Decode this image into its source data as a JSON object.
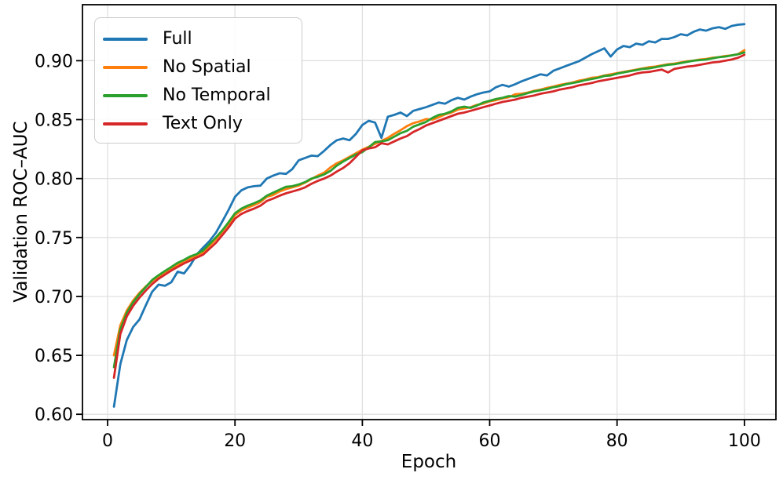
{
  "figure": {
    "xlabel": "Epoch",
    "ylabel": "Validation ROC–AUC"
  },
  "chart_data": {
    "type": "line",
    "title": "",
    "xlabel": "Epoch",
    "ylabel": "Validation ROC–AUC",
    "xlim": [
      -3.95,
      104.95
    ],
    "ylim": [
      0.5955,
      0.9475
    ],
    "xticks": [
      0,
      20,
      40,
      60,
      80,
      100
    ],
    "yticks": [
      0.6,
      0.65,
      0.7,
      0.75,
      0.8,
      0.85,
      0.9
    ],
    "grid": true,
    "grid_color": "#e0e0e0",
    "legend_position": "upper-left",
    "x": [
      1,
      2,
      3,
      4,
      5,
      6,
      7,
      8,
      9,
      10,
      11,
      12,
      13,
      14,
      15,
      16,
      17,
      18,
      19,
      20,
      21,
      22,
      23,
      24,
      25,
      26,
      27,
      28,
      29,
      30,
      31,
      32,
      33,
      34,
      35,
      36,
      37,
      38,
      39,
      40,
      41,
      42,
      43,
      44,
      45,
      46,
      47,
      48,
      49,
      50,
      51,
      52,
      53,
      54,
      55,
      56,
      57,
      58,
      59,
      60,
      61,
      62,
      63,
      64,
      65,
      66,
      67,
      68,
      69,
      70,
      71,
      72,
      73,
      74,
      75,
      76,
      77,
      78,
      79,
      80,
      81,
      82,
      83,
      84,
      85,
      86,
      87,
      88,
      89,
      90,
      91,
      92,
      93,
      94,
      95,
      96,
      97,
      98,
      99,
      100
    ],
    "series": [
      {
        "name": "Full",
        "color": "#1f77b4",
        "values": [
          0.6065,
          0.6425,
          0.663,
          0.674,
          0.6805,
          0.6925,
          0.704,
          0.71,
          0.709,
          0.712,
          0.721,
          0.7195,
          0.7265,
          0.7355,
          0.7415,
          0.747,
          0.754,
          0.7635,
          0.7735,
          0.7845,
          0.79,
          0.7925,
          0.7935,
          0.794,
          0.8,
          0.8025,
          0.8045,
          0.804,
          0.808,
          0.8155,
          0.8175,
          0.8195,
          0.819,
          0.8235,
          0.8285,
          0.8325,
          0.834,
          0.8325,
          0.838,
          0.8455,
          0.849,
          0.8475,
          0.8345,
          0.8525,
          0.854,
          0.856,
          0.853,
          0.8575,
          0.859,
          0.8605,
          0.8625,
          0.8645,
          0.8635,
          0.8665,
          0.8685,
          0.867,
          0.8695,
          0.8715,
          0.873,
          0.874,
          0.8775,
          0.8795,
          0.878,
          0.88,
          0.8825,
          0.8845,
          0.8865,
          0.8885,
          0.8875,
          0.8915,
          0.8935,
          0.8955,
          0.8975,
          0.8995,
          0.9025,
          0.9055,
          0.908,
          0.9105,
          0.9035,
          0.9095,
          0.9125,
          0.9115,
          0.9145,
          0.9135,
          0.9165,
          0.9155,
          0.9185,
          0.9185,
          0.92,
          0.9225,
          0.9215,
          0.9245,
          0.9265,
          0.9255,
          0.9275,
          0.9285,
          0.927,
          0.9295,
          0.9305,
          0.931
        ]
      },
      {
        "name": "No Spatial",
        "color": "#ff7f0e",
        "values": [
          0.65,
          0.6755,
          0.688,
          0.6965,
          0.703,
          0.7085,
          0.713,
          0.717,
          0.7205,
          0.724,
          0.727,
          0.73,
          0.7325,
          0.735,
          0.7375,
          0.743,
          0.7485,
          0.755,
          0.7615,
          0.769,
          0.773,
          0.7755,
          0.7775,
          0.78,
          0.7845,
          0.786,
          0.789,
          0.791,
          0.7925,
          0.794,
          0.7965,
          0.7995,
          0.8025,
          0.805,
          0.8095,
          0.813,
          0.8155,
          0.8185,
          0.8215,
          0.8245,
          0.827,
          0.8295,
          0.832,
          0.8345,
          0.838,
          0.841,
          0.8445,
          0.847,
          0.8485,
          0.8505,
          0.85,
          0.852,
          0.8545,
          0.856,
          0.8585,
          0.8595,
          0.8605,
          0.8625,
          0.8635,
          0.8655,
          0.8665,
          0.868,
          0.869,
          0.8715,
          0.872,
          0.873,
          0.8745,
          0.8755,
          0.877,
          0.878,
          0.8795,
          0.8805,
          0.8815,
          0.883,
          0.884,
          0.8855,
          0.886,
          0.8875,
          0.8885,
          0.8895,
          0.8905,
          0.8915,
          0.8925,
          0.8935,
          0.8945,
          0.895,
          0.896,
          0.897,
          0.8975,
          0.8985,
          0.8995,
          0.9,
          0.901,
          0.9015,
          0.9025,
          0.903,
          0.904,
          0.9045,
          0.9055,
          0.909
        ]
      },
      {
        "name": "No Temporal",
        "color": "#2ca02c",
        "values": [
          0.64,
          0.672,
          0.686,
          0.695,
          0.702,
          0.708,
          0.714,
          0.718,
          0.7215,
          0.725,
          0.7285,
          0.731,
          0.734,
          0.736,
          0.739,
          0.7445,
          0.75,
          0.756,
          0.763,
          0.7705,
          0.7745,
          0.777,
          0.779,
          0.7815,
          0.7855,
          0.788,
          0.7905,
          0.793,
          0.7935,
          0.795,
          0.797,
          0.8,
          0.8015,
          0.8035,
          0.8065,
          0.811,
          0.8145,
          0.8175,
          0.8205,
          0.8225,
          0.8265,
          0.831,
          0.8315,
          0.8325,
          0.8355,
          0.8385,
          0.8405,
          0.844,
          0.846,
          0.848,
          0.8515,
          0.854,
          0.855,
          0.857,
          0.86,
          0.861,
          0.86,
          0.862,
          0.8645,
          0.866,
          0.8675,
          0.8685,
          0.87,
          0.8695,
          0.871,
          0.8725,
          0.874,
          0.875,
          0.876,
          0.8775,
          0.8785,
          0.88,
          0.881,
          0.882,
          0.8835,
          0.8845,
          0.8855,
          0.887,
          0.8875,
          0.889,
          0.89,
          0.891,
          0.892,
          0.893,
          0.8935,
          0.8945,
          0.8955,
          0.8965,
          0.897,
          0.898,
          0.899,
          0.9,
          0.9005,
          0.901,
          0.902,
          0.903,
          0.9035,
          0.9045,
          0.9055,
          0.907
        ]
      },
      {
        "name": "Text Only",
        "color": "#d62728",
        "values": [
          0.631,
          0.668,
          0.683,
          0.692,
          0.699,
          0.705,
          0.7105,
          0.715,
          0.7185,
          0.722,
          0.725,
          0.728,
          0.7305,
          0.733,
          0.7355,
          0.7405,
          0.7455,
          0.752,
          0.7585,
          0.766,
          0.77,
          0.7725,
          0.7745,
          0.777,
          0.781,
          0.783,
          0.7855,
          0.7875,
          0.789,
          0.7905,
          0.7925,
          0.7955,
          0.798,
          0.8,
          0.8025,
          0.806,
          0.809,
          0.813,
          0.8185,
          0.824,
          0.8255,
          0.8265,
          0.83,
          0.829,
          0.8315,
          0.834,
          0.836,
          0.8395,
          0.842,
          0.845,
          0.847,
          0.849,
          0.851,
          0.853,
          0.855,
          0.856,
          0.8575,
          0.859,
          0.8605,
          0.862,
          0.8635,
          0.865,
          0.866,
          0.867,
          0.8685,
          0.8695,
          0.8705,
          0.872,
          0.873,
          0.874,
          0.8755,
          0.8765,
          0.8775,
          0.879,
          0.88,
          0.881,
          0.8825,
          0.8835,
          0.8845,
          0.8855,
          0.8865,
          0.8875,
          0.889,
          0.89,
          0.8905,
          0.8915,
          0.8925,
          0.89,
          0.893,
          0.894,
          0.895,
          0.8955,
          0.8965,
          0.8975,
          0.8985,
          0.899,
          0.9,
          0.901,
          0.9025,
          0.905
        ]
      }
    ]
  }
}
